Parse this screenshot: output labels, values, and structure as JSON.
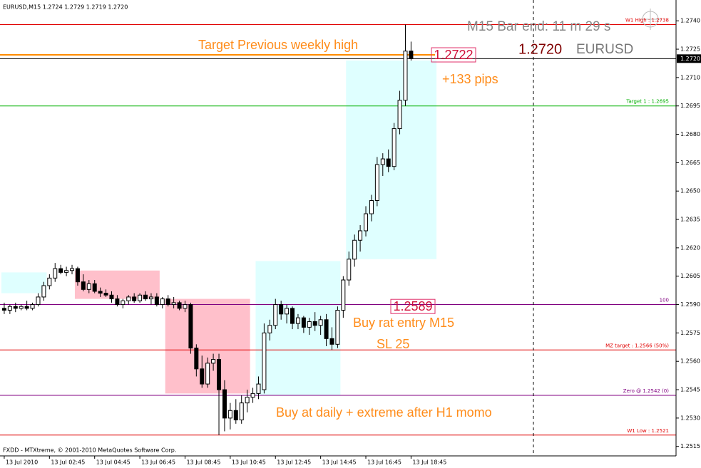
{
  "chart_data": {
    "type": "candlestick",
    "header": "EURUSD,M15  1.2724 1.2729 1.2719 1.2720",
    "footer": "FXDD - MTXtreme, © 2001-2010 MetaQuotes Software Corp.",
    "xlim": [
      -0.75,
      118.9
    ],
    "xticks": [
      {
        "value": 0,
        "label": "13 Jul 2010"
      },
      {
        "value": 8,
        "label": "13 Jul 02:45"
      },
      {
        "value": 16,
        "label": "13 Jul 04:45"
      },
      {
        "value": 24,
        "label": "13 Jul 06:45"
      },
      {
        "value": 32,
        "label": "13 Jul 08:45"
      },
      {
        "value": 40,
        "label": "13 Jul 10:45"
      },
      {
        "value": 48,
        "label": "13 Jul 12:45"
      },
      {
        "value": 56,
        "label": "13 Jul 14:45"
      },
      {
        "value": 64,
        "label": "13 Jul 16:45"
      },
      {
        "value": 72,
        "label": "13 Jul 18:45"
      }
    ],
    "ylim": [
      1.251,
      1.2751
    ],
    "yticks": [
      {
        "value": 1.274,
        "label": "1.2740"
      },
      1.2725,
      {
        "value": 1.271,
        "label": "1.2710"
      },
      1.2695,
      {
        "value": 1.268,
        "label": "1.2680"
      },
      1.2665,
      {
        "value": 1.265,
        "label": "1.2650"
      },
      1.2635,
      {
        "value": 1.262,
        "label": "1.2620"
      },
      1.2605,
      {
        "value": 1.259,
        "label": "1.2590"
      },
      1.2575,
      {
        "value": 1.256,
        "label": "1.2560"
      },
      1.2545,
      {
        "value": 1.253,
        "label": "1.2530"
      },
      1.2515
    ],
    "bid": {
      "value": 1.272,
      "label": "1.2720"
    },
    "open": [
      1.2588,
      1.2587,
      1.2589,
      1.2588,
      1.2589,
      1.2588,
      1.259,
      1.2594,
      1.26,
      1.2604,
      1.2609,
      1.2607,
      1.2608,
      1.2609,
      1.2602,
      1.2598,
      1.2601,
      1.2597,
      1.2596,
      1.2595,
      1.2593,
      1.259,
      1.2592,
      1.2594,
      1.2592,
      1.2595,
      1.2593,
      1.2594,
      1.259,
      1.2593,
      1.259,
      1.2591,
      1.2588,
      1.259,
      1.2567,
      1.2556,
      1.2548,
      1.2559,
      1.2561,
      1.2545,
      1.253,
      1.2534,
      1.2529,
      1.2538,
      1.2541,
      1.2543,
      1.2545,
      1.2575,
      1.2579,
      1.259,
      1.2585,
      1.2588,
      1.258,
      1.2583,
      1.2578,
      1.2581,
      1.2579,
      1.2582,
      1.2572,
      1.2569,
      1.2587,
      1.2603,
      1.2614,
      1.2624,
      1.2629,
      1.2638,
      1.2645,
      1.2664,
      1.2667,
      1.2663,
      1.2683,
      1.2698,
      1.2724
    ],
    "high": [
      1.2591,
      1.259,
      1.2591,
      1.259,
      1.2592,
      1.2591,
      1.2596,
      1.2602,
      1.2606,
      1.2612,
      1.2611,
      1.261,
      1.2611,
      1.261,
      1.2606,
      1.2603,
      1.2603,
      1.2599,
      1.2598,
      1.2597,
      1.2595,
      1.2593,
      1.2595,
      1.2596,
      1.2596,
      1.2597,
      1.2596,
      1.2596,
      1.2594,
      1.2595,
      1.2594,
      1.2592,
      1.2592,
      1.2591,
      1.2569,
      1.2563,
      1.2562,
      1.2564,
      1.2564,
      1.255,
      1.2538,
      1.254,
      1.2542,
      1.2545,
      1.2546,
      1.2552,
      1.258,
      1.2582,
      1.2593,
      1.2592,
      1.259,
      1.2589,
      1.2585,
      1.2584,
      1.2583,
      1.2586,
      1.2584,
      1.2585,
      1.2578,
      1.2589,
      1.2605,
      1.2618,
      1.2627,
      1.2632,
      1.2642,
      1.2648,
      1.2668,
      1.267,
      1.2672,
      1.2686,
      1.2703,
      1.2738,
      1.2729
    ],
    "low": [
      1.2585,
      1.2585,
      1.2586,
      1.2587,
      1.2587,
      1.2587,
      1.2589,
      1.2592,
      1.2598,
      1.2602,
      1.2606,
      1.2605,
      1.2606,
      1.26,
      1.2597,
      1.2596,
      1.2596,
      1.2594,
      1.2594,
      1.2591,
      1.2589,
      1.2588,
      1.259,
      1.2591,
      1.2591,
      1.2592,
      1.259,
      1.2589,
      1.2588,
      1.2589,
      1.2588,
      1.2587,
      1.2586,
      1.2564,
      1.2552,
      1.2546,
      1.2546,
      1.2555,
      1.2521,
      1.2523,
      1.2524,
      1.2527,
      1.2527,
      1.2533,
      1.2538,
      1.254,
      1.2543,
      1.2571,
      1.2577,
      1.2582,
      1.258,
      1.2577,
      1.2577,
      1.2575,
      1.2574,
      1.2576,
      1.2574,
      1.2568,
      1.2566,
      1.2567,
      1.2583,
      1.26,
      1.261,
      1.2618,
      1.2626,
      1.2634,
      1.2642,
      1.2658,
      1.266,
      1.2661,
      1.268,
      1.2695,
      1.2719
    ],
    "close": [
      1.2587,
      1.2589,
      1.2588,
      1.2589,
      1.2588,
      1.259,
      1.2594,
      1.26,
      1.2604,
      1.2609,
      1.2607,
      1.2608,
      1.2609,
      1.2602,
      1.2598,
      1.2601,
      1.2597,
      1.2596,
      1.2595,
      1.2593,
      1.259,
      1.2592,
      1.2594,
      1.2592,
      1.2595,
      1.2593,
      1.2594,
      1.259,
      1.2593,
      1.259,
      1.2591,
      1.2588,
      1.259,
      1.2567,
      1.2556,
      1.2548,
      1.2559,
      1.2561,
      1.2545,
      1.253,
      1.2534,
      1.2529,
      1.2538,
      1.2541,
      1.2543,
      1.2548,
      1.2575,
      1.2579,
      1.259,
      1.2585,
      1.2588,
      1.258,
      1.2583,
      1.2578,
      1.2581,
      1.2579,
      1.2582,
      1.2572,
      1.2569,
      1.2587,
      1.2603,
      1.2614,
      1.2624,
      1.2629,
      1.2638,
      1.2645,
      1.2664,
      1.2667,
      1.2663,
      1.2683,
      1.2698,
      1.2724,
      1.272
    ],
    "zones": [
      {
        "from": 0,
        "to": 7,
        "low": 1.2596,
        "high": 1.2607,
        "color": "#dfffff"
      },
      {
        "from": 13,
        "to": 27,
        "low": 1.2593,
        "high": 1.2608,
        "color": "#ffc0cb"
      },
      {
        "from": 29,
        "to": 43,
        "low": 1.2543,
        "high": 1.2593,
        "color": "#ffc0cb"
      },
      {
        "from": 45,
        "to": 59,
        "low": 1.2542,
        "high": 1.2613,
        "color": "#dfffff"
      },
      {
        "from": 61,
        "to": 76,
        "low": 1.2614,
        "high": 1.2719,
        "color": "#dfffff"
      }
    ],
    "levels": [
      {
        "value": 1.2738,
        "label": "W1 High : 1.2738",
        "color": "#e00000"
      },
      {
        "value": 1.2695,
        "label": "Target 1 : 1.2695",
        "color": "#00b000"
      },
      {
        "value": 1.259,
        "label": "100",
        "color": "#800080"
      },
      {
        "value": 1.2566,
        "label": "MZ target : 1.2566 (50%)",
        "color": "#e00000"
      },
      {
        "value": 1.2542,
        "label": "Zero @ 1.2542 (0)",
        "color": "#800080"
      },
      {
        "value": 1.2521,
        "label": "W1 Low : 1.2521",
        "color": "#e00000"
      }
    ],
    "target_line": {
      "value": 1.2722,
      "color": "#ff8c00"
    },
    "price_boxes": [
      1.2722,
      1.2589
    ],
    "annotations": [
      "Target Previous weekly high",
      "+133 pips",
      "1.2720",
      "EURUSD",
      "M15 Bar end: 11 m 29 s",
      "Buy rat entry M15",
      "SL 25",
      "Buy at daily + extreme after H1 momo"
    ]
  }
}
